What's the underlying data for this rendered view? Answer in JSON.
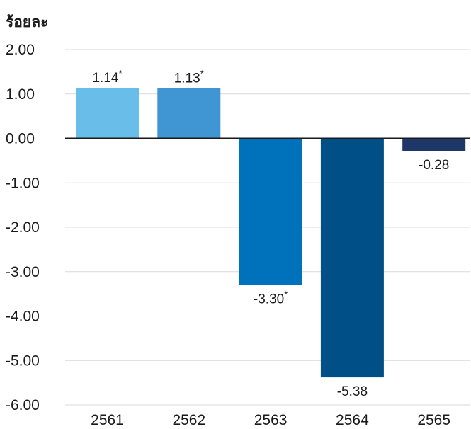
{
  "chart_data": {
    "type": "bar",
    "ylabel": "ร้อยละ",
    "categories": [
      "2561",
      "2562",
      "2563",
      "2564",
      "2565"
    ],
    "values": [
      1.14,
      1.13,
      -3.3,
      -5.38,
      -0.28
    ],
    "value_labels": [
      "1.14",
      "1.13",
      "-3.30",
      "-5.38",
      "-0.28"
    ],
    "footnote_marks": [
      "*",
      "*",
      "*",
      "",
      ""
    ],
    "colors": [
      "#69bde9",
      "#3f96d2",
      "#0071bb",
      "#004f86",
      "#1d3868"
    ],
    "ylim": [
      -6,
      2
    ],
    "yticks": [
      2,
      1,
      0,
      -1,
      -2,
      -3,
      -4,
      -5,
      -6
    ],
    "ytick_labels": [
      "2.00",
      "1.00",
      "0.00",
      "-1.00",
      "-2.00",
      "-3.00",
      "-4.00",
      "-5.00",
      "-6.00"
    ],
    "grid": true,
    "legend": "none"
  }
}
